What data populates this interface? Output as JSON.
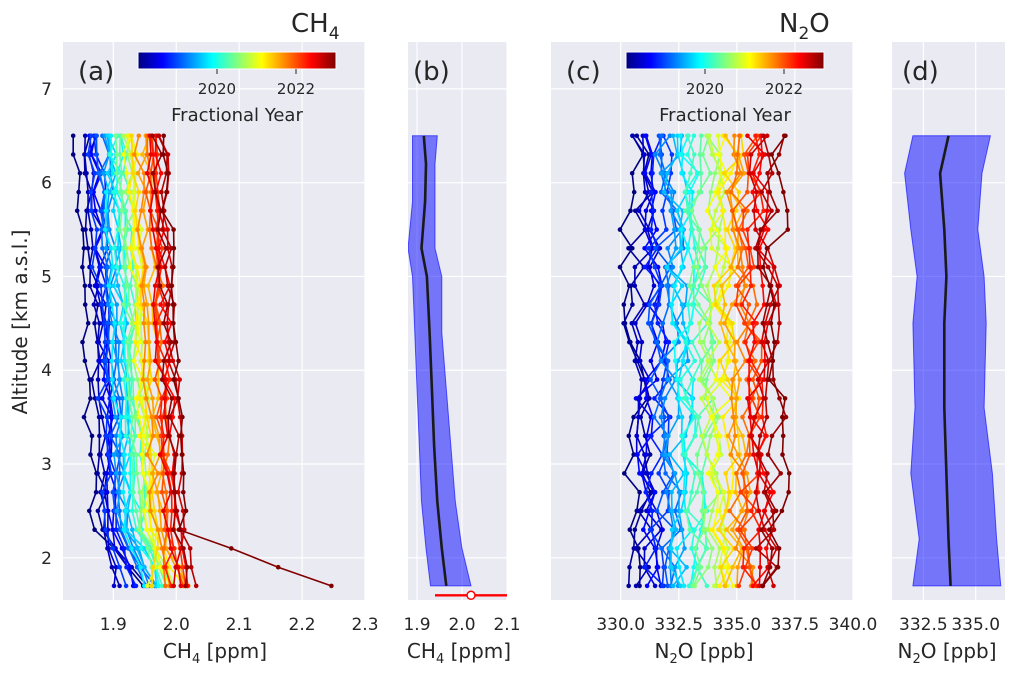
{
  "figure": {
    "y_axis_label": "Altitude [km a.s.l.]",
    "y_ticks": [
      "2",
      "3",
      "4",
      "5",
      "6",
      "7"
    ],
    "ch4_title": "CH",
    "ch4_title_sub": "4",
    "n2o_title": "N",
    "n2o_title_sub": "2",
    "n2o_title_tail": "O"
  },
  "chart_data": [
    {
      "panel": "a",
      "label": "(a)",
      "type": "line",
      "xlabel_pre": "CH",
      "xlabel_sub": "4",
      "xlabel_post": " [ppm]",
      "xlim": [
        1.82,
        2.3
      ],
      "ylim": [
        1.55,
        7.5
      ],
      "xticks": [
        "1.9",
        "2.0",
        "2.1",
        "2.2",
        "2.3"
      ],
      "colorbar": {
        "ticks": [
          "2020",
          "2022"
        ],
        "label": "Fractional Year",
        "range": [
          2017.7,
          2023.0
        ]
      },
      "profiles": {
        "count": 40,
        "altitude_range": [
          1.7,
          6.5
        ],
        "surface_low": 1.88,
        "surface_high": 2.24,
        "top_low": 1.85,
        "top_high": 1.98
      },
      "note": "Individual aircraft CH4 profiles colored by fractional year; approximate."
    },
    {
      "panel": "b",
      "label": "(b)",
      "type": "area",
      "xlabel_pre": "CH",
      "xlabel_sub": "4",
      "xlabel_post": " [ppm]",
      "xlim": [
        1.88,
        2.1
      ],
      "ylim": [
        1.55,
        7.5
      ],
      "xticks": [
        "1.9",
        "2.0",
        "2.1"
      ],
      "altitude": [
        1.7,
        2.1,
        2.6,
        3.2,
        3.8,
        4.4,
        5.0,
        5.3,
        5.8,
        6.2,
        6.5
      ],
      "mean": [
        1.965,
        1.955,
        1.945,
        1.938,
        1.933,
        1.928,
        1.922,
        1.91,
        1.918,
        1.92,
        1.915
      ],
      "lower": [
        1.93,
        1.92,
        1.91,
        1.905,
        1.9,
        1.895,
        1.89,
        1.88,
        1.89,
        1.89,
        1.89
      ],
      "upper": [
        2.02,
        2.0,
        1.985,
        1.975,
        1.965,
        1.955,
        1.955,
        1.94,
        1.94,
        1.94,
        1.945
      ],
      "surface_point": {
        "x": 2.02,
        "xerr_low": 1.94,
        "xerr_high": 2.1,
        "altitude": 1.6
      }
    },
    {
      "panel": "c",
      "label": "(c)",
      "type": "line",
      "xlabel_pre": "N",
      "xlabel_sub": "2",
      "xlabel_post": "O [ppb]",
      "xlim": [
        327.0,
        340.0
      ],
      "ylim": [
        1.55,
        7.5
      ],
      "xticks": [
        "330.0",
        "332.5",
        "335.0",
        "337.5",
        "340.0"
      ],
      "colorbar": {
        "ticks": [
          "2020",
          "2022"
        ],
        "label": "Fractional Year",
        "range": [
          2017.7,
          2023.0
        ]
      },
      "profiles": {
        "count": 40,
        "altitude_range": [
          1.7,
          6.5
        ],
        "value_start": 330.6,
        "value_end": 336.7
      },
      "note": "Individual aircraft N2O profiles colored by fractional year; approximate."
    },
    {
      "panel": "d",
      "label": "(d)",
      "type": "area",
      "xlabel_pre": "N",
      "xlabel_sub": "2",
      "xlabel_post": "O [ppb]",
      "xlim": [
        331.0,
        336.4
      ],
      "ylim": [
        1.55,
        7.5
      ],
      "xticks": [
        "332.5",
        "335.0"
      ],
      "altitude": [
        1.7,
        2.2,
        2.9,
        3.6,
        4.5,
        5.0,
        5.5,
        6.1,
        6.5
      ],
      "mean": [
        333.8,
        333.7,
        333.6,
        333.5,
        333.5,
        333.6,
        333.5,
        333.3,
        333.7
      ],
      "lower": [
        332.0,
        332.3,
        331.9,
        332.1,
        332.0,
        332.2,
        331.9,
        331.6,
        332.0
      ],
      "upper": [
        336.2,
        336.0,
        335.8,
        335.4,
        335.5,
        335.4,
        335.1,
        335.3,
        335.7
      ]
    }
  ]
}
